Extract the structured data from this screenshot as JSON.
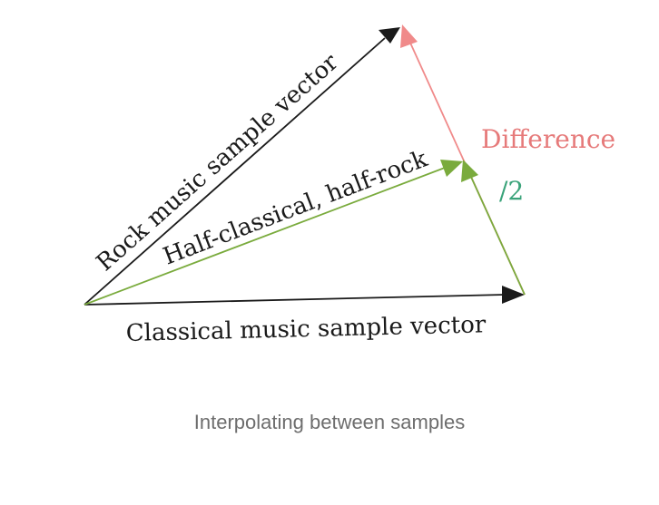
{
  "diagram": {
    "labels": {
      "rock": "Rock music sample vector",
      "half": "Half-classical, half-rock",
      "classical": "Classical music sample vector",
      "difference": "Difference",
      "halve": "/2"
    },
    "colors": {
      "black": "#1a1a1a",
      "green": "#7aab3d",
      "difference_arrow": "#f08a8a",
      "difference_text": "#e67a7a",
      "halve_text": "#3aa37a"
    }
  },
  "caption": "Interpolating between samples"
}
